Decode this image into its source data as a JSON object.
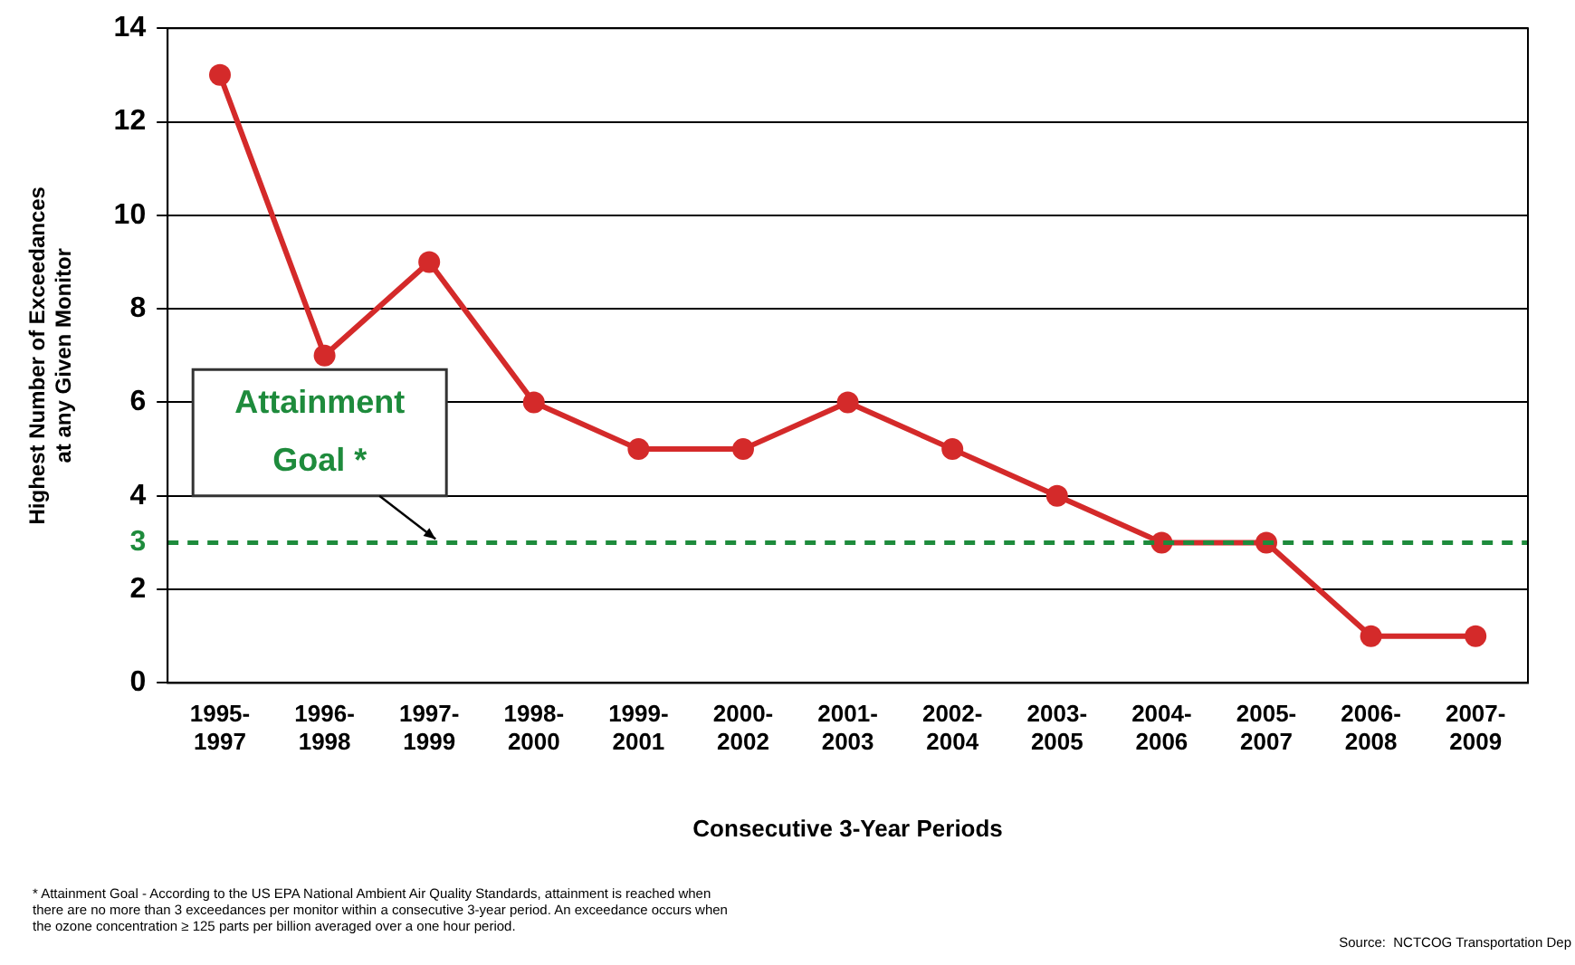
{
  "chart_data": {
    "type": "line",
    "xlabel": "Consecutive 3-Year Periods",
    "ylabel": "Highest Number of Exceedances\nat any Given Monitor",
    "categories": [
      "1995-\n1997",
      "1996-\n1998",
      "1997-\n1999",
      "1998-\n2000",
      "1999-\n2001",
      "2000-\n2002",
      "2001-\n2003",
      "2002-\n2004",
      "2003-\n2005",
      "2004-\n2006",
      "2005-\n2007",
      "2006-\n2008",
      "2007-\n2009"
    ],
    "values": [
      13,
      7,
      9,
      6,
      5,
      5,
      6,
      5,
      4,
      3,
      3,
      1,
      1
    ],
    "color": "#d42a2a",
    "marker": "circle",
    "line_style": "solid",
    "ylim": [
      0,
      14
    ],
    "yticks": [
      0,
      2,
      3,
      4,
      6,
      8,
      10,
      12,
      14
    ],
    "grid": "y",
    "legend": false,
    "ref_lines": [
      {
        "axis": "y",
        "value": 3,
        "label": "Attainment\nGoal *",
        "color": "#1e8b3c",
        "line_style": "dashed"
      }
    ],
    "annotations": [
      "* Attainment Goal - According to the US EPA National Ambient Air Quality Standards, attainment is reached when\nthere are no more than 3 exceedances per monitor within a consecutive 3-year period. An exceedance occurs when\nthe ozone concentration ≥ 125 parts per billion averaged over a one hour period.",
      "Source:  NCTCOG Transportation Dep"
    ]
  }
}
